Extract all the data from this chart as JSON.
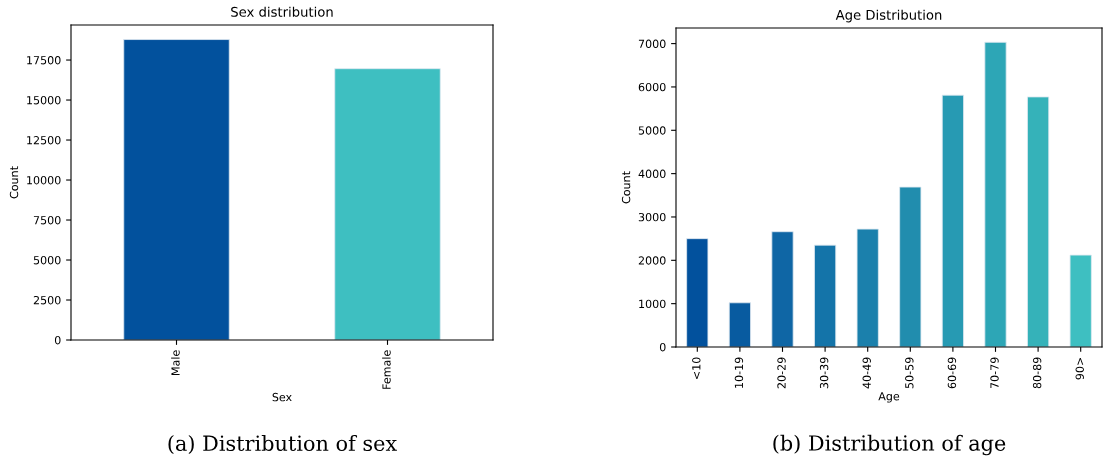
{
  "chart_data": [
    {
      "type": "bar",
      "title": "Sex distribution",
      "xlabel": "Sex",
      "ylabel": "Count",
      "categories": [
        "Male",
        "Female"
      ],
      "values": [
        18780,
        16960
      ],
      "colors": [
        "#02519d",
        "#3ebfc1"
      ],
      "ylim": [
        0,
        19690
      ],
      "yticks": [
        0,
        2500,
        5000,
        7500,
        10000,
        12500,
        15000,
        17500
      ],
      "grid": false,
      "legend": false,
      "annotations": [
        "(a) Distribution of sex"
      ]
    },
    {
      "type": "bar",
      "title": "Age Distribution",
      "xlabel": "Age",
      "ylabel": "Count",
      "categories": [
        "<10",
        "10-19",
        "20-29",
        "30-39",
        "40-49",
        "50-59",
        "60-69",
        "70-79",
        "80-89",
        "90>"
      ],
      "values": [
        2500,
        1020,
        2660,
        2350,
        2720,
        3690,
        5810,
        7030,
        5770,
        2120
      ],
      "colors": [
        "#02519d",
        "#085ba0",
        "#0f66a5",
        "#1474a9",
        "#1b80ac",
        "#218dae",
        "#279ab3",
        "#2da6b6",
        "#35b2b9",
        "#3ebfc1"
      ],
      "ylim": [
        0,
        7360
      ],
      "yticks": [
        0,
        1000,
        2000,
        3000,
        4000,
        5000,
        6000,
        7000
      ],
      "grid": false,
      "legend": false,
      "annotations": [
        "(b) Distribution of age"
      ]
    }
  ]
}
